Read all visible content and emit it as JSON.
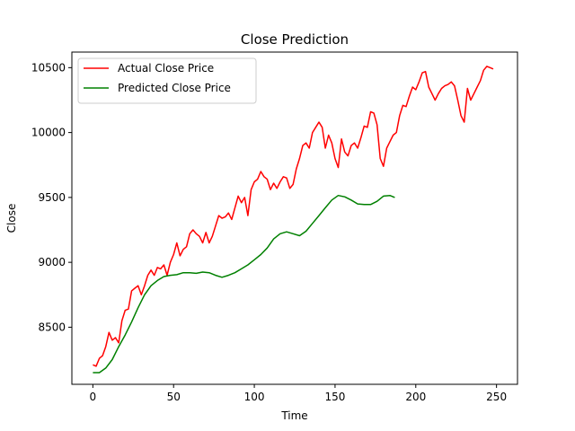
{
  "chart_data": {
    "type": "line",
    "title": "Close Prediction",
    "xlabel": "Time",
    "ylabel": "Close",
    "xlim": [
      -13,
      263
    ],
    "ylim": [
      8060,
      10620
    ],
    "xticks": [
      0,
      50,
      100,
      150,
      200,
      250
    ],
    "yticks": [
      8500,
      9000,
      9500,
      10000,
      10500
    ],
    "grid": false,
    "legend_position": "top-left",
    "series": [
      {
        "name": "Actual Close Price",
        "color": "#ff0000",
        "x": [
          0,
          2,
          4,
          6,
          8,
          10,
          12,
          14,
          16,
          18,
          20,
          22,
          24,
          26,
          28,
          30,
          32,
          34,
          36,
          38,
          40,
          42,
          44,
          46,
          48,
          50,
          52,
          54,
          56,
          58,
          60,
          62,
          64,
          66,
          68,
          70,
          72,
          74,
          76,
          78,
          80,
          82,
          84,
          86,
          88,
          90,
          92,
          94,
          96,
          98,
          100,
          102,
          104,
          106,
          108,
          110,
          112,
          114,
          116,
          118,
          120,
          122,
          124,
          126,
          128,
          130,
          132,
          134,
          136,
          138,
          140,
          142,
          144,
          146,
          148,
          150,
          152,
          154,
          156,
          158,
          160,
          162,
          164,
          166,
          168,
          170,
          172,
          174,
          176,
          178,
          180,
          182,
          184,
          186,
          188,
          190,
          192,
          194,
          196,
          198,
          200,
          202,
          204,
          206,
          208,
          210,
          212,
          214,
          216,
          218,
          220,
          222,
          224,
          226,
          228,
          230,
          232,
          234,
          236,
          238,
          240,
          242,
          244,
          246,
          248
        ],
        "y": [
          8210,
          8200,
          8260,
          8280,
          8350,
          8460,
          8400,
          8420,
          8380,
          8550,
          8630,
          8640,
          8780,
          8800,
          8820,
          8750,
          8820,
          8900,
          8940,
          8900,
          8960,
          8950,
          8980,
          8900,
          9000,
          9060,
          9150,
          9050,
          9100,
          9120,
          9220,
          9250,
          9220,
          9200,
          9150,
          9230,
          9150,
          9200,
          9280,
          9360,
          9340,
          9350,
          9380,
          9330,
          9420,
          9510,
          9460,
          9500,
          9360,
          9560,
          9620,
          9640,
          9700,
          9660,
          9640,
          9560,
          9610,
          9570,
          9620,
          9660,
          9650,
          9570,
          9600,
          9720,
          9800,
          9900,
          9920,
          9880,
          10000,
          10040,
          10080,
          10040,
          9880,
          9980,
          9920,
          9800,
          9730,
          9950,
          9850,
          9820,
          9900,
          9920,
          9880,
          9960,
          10050,
          10040,
          10160,
          10150,
          10060,
          9800,
          9740,
          9880,
          9930,
          9980,
          10000,
          10130,
          10210,
          10200,
          10280,
          10350,
          10330,
          10390,
          10460,
          10470,
          10350,
          10300,
          10250,
          10300,
          10340,
          10360,
          10370,
          10390,
          10360,
          10250,
          10130,
          10080,
          10340,
          10250,
          10300,
          10350,
          10400,
          10480,
          10510,
          10500,
          10490
        ]
      },
      {
        "name": "Predicted Close Price",
        "color": "#008000",
        "x": [
          0,
          4,
          8,
          12,
          16,
          20,
          24,
          28,
          32,
          36,
          40,
          44,
          48,
          52,
          56,
          60,
          64,
          68,
          72,
          76,
          80,
          84,
          88,
          92,
          96,
          100,
          104,
          108,
          112,
          116,
          120,
          124,
          128,
          132,
          136,
          140,
          144,
          148,
          152,
          156,
          160,
          164,
          168,
          172,
          176,
          180,
          184,
          187
        ],
        "y": [
          8150,
          8150,
          8185,
          8250,
          8350,
          8440,
          8540,
          8650,
          8750,
          8820,
          8860,
          8890,
          8900,
          8905,
          8920,
          8920,
          8915,
          8925,
          8920,
          8900,
          8885,
          8900,
          8920,
          8950,
          8980,
          9020,
          9060,
          9110,
          9180,
          9220,
          9235,
          9220,
          9205,
          9240,
          9300,
          9360,
          9420,
          9480,
          9515,
          9505,
          9480,
          9450,
          9445,
          9445,
          9470,
          9510,
          9515,
          9500
        ]
      }
    ]
  }
}
